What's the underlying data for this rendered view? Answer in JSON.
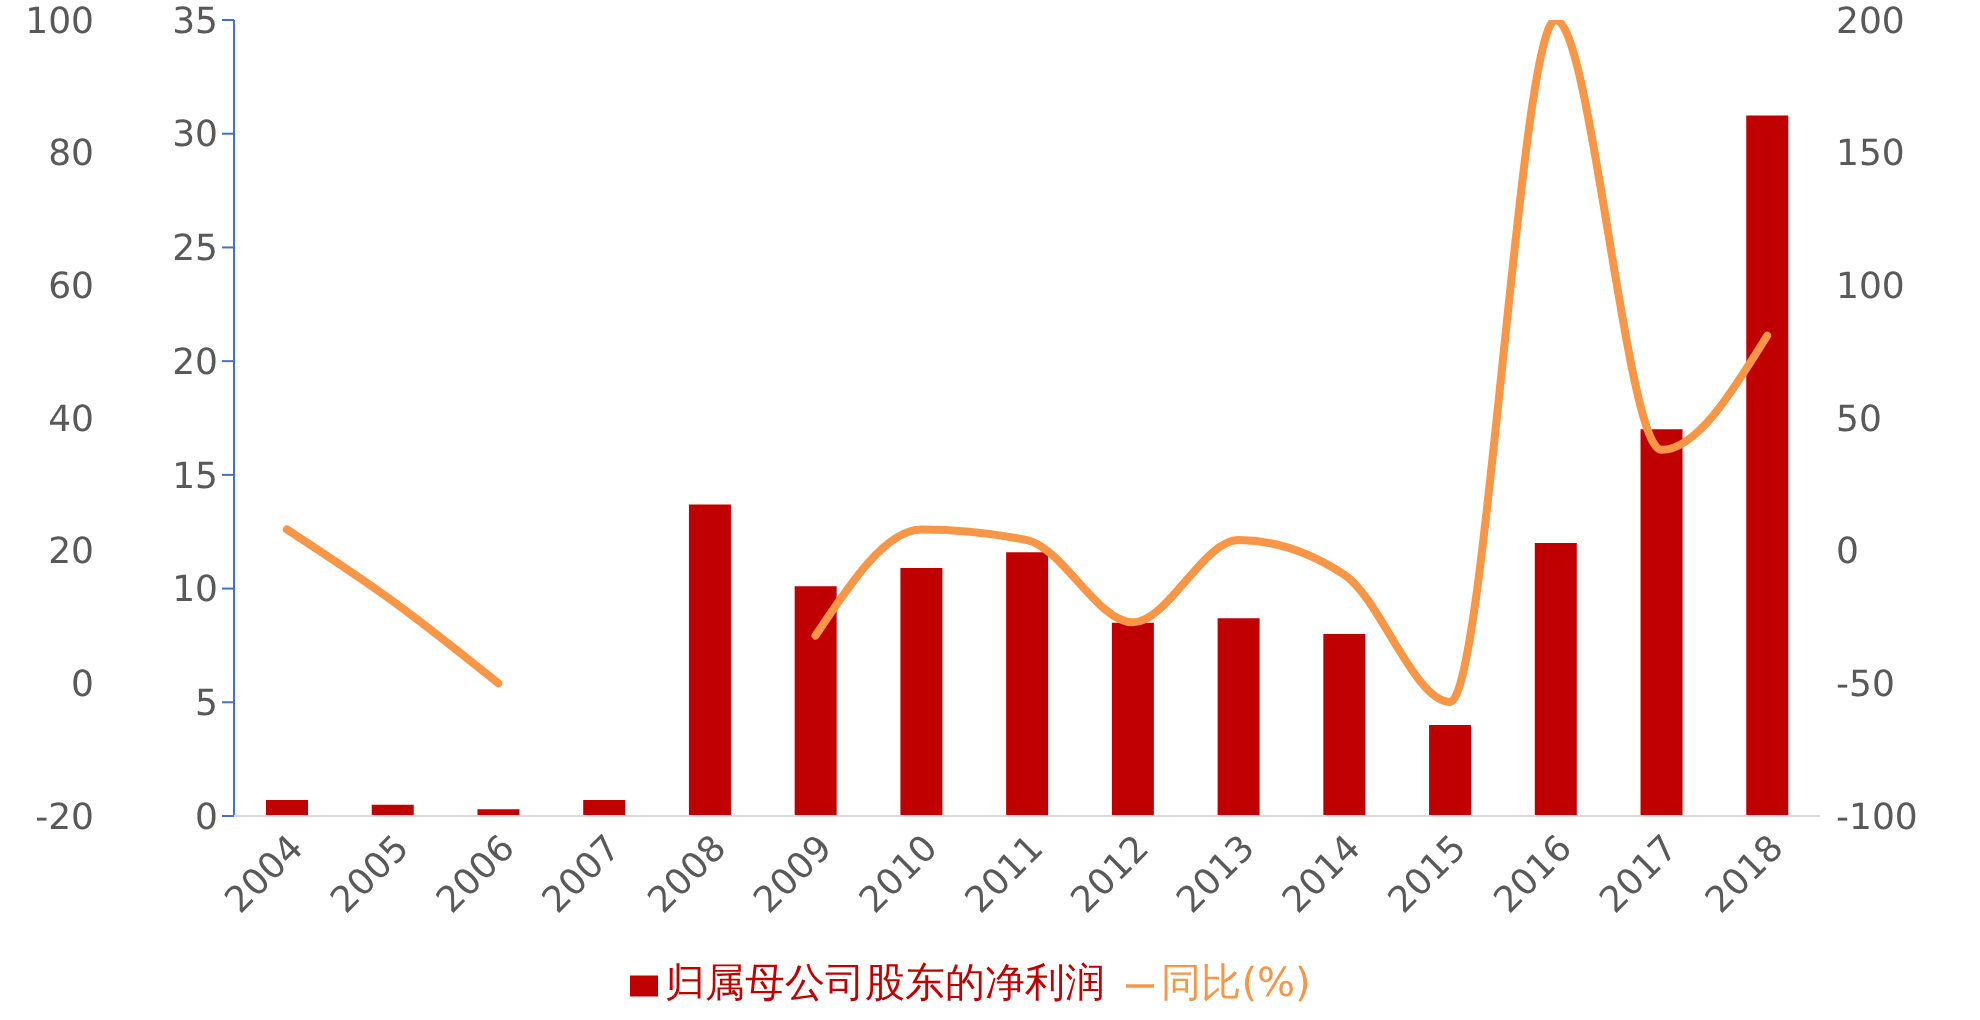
{
  "chart_data": {
    "type": "bar",
    "categories": [
      "2004",
      "2005",
      "2006",
      "2007",
      "2008",
      "2009",
      "2010",
      "2011",
      "2012",
      "2013",
      "2014",
      "2015",
      "2016",
      "2017",
      "2018"
    ],
    "series": [
      {
        "name": "归属母公司股东的净利润",
        "color": "#c00000",
        "values": [
          0.7,
          0.5,
          0.3,
          0.7,
          13.7,
          10.1,
          10.9,
          11.6,
          8.5,
          8.7,
          8.0,
          4.0,
          12.0,
          17.0,
          30.8
        ]
      },
      {
        "name": "同比(%)",
        "type": "line",
        "axis": "y2",
        "color": "#f79646",
        "values": [
          8,
          -19,
          -50,
          null,
          null,
          -32,
          8,
          4,
          -27,
          4,
          -9,
          -57,
          200,
          38,
          81
        ]
      }
    ],
    "ylim": [
      0,
      35
    ],
    "yticks": [
      0,
      5,
      10,
      15,
      20,
      25,
      30,
      35
    ],
    "y2lim": [
      -100,
      200
    ],
    "y2ticks": [
      -100,
      -50,
      0,
      50,
      100,
      150,
      200
    ],
    "y3lim": [
      -20,
      100
    ],
    "y3ticks": [
      -20,
      0,
      20,
      40,
      60,
      80,
      100
    ],
    "legend": "bottom"
  }
}
